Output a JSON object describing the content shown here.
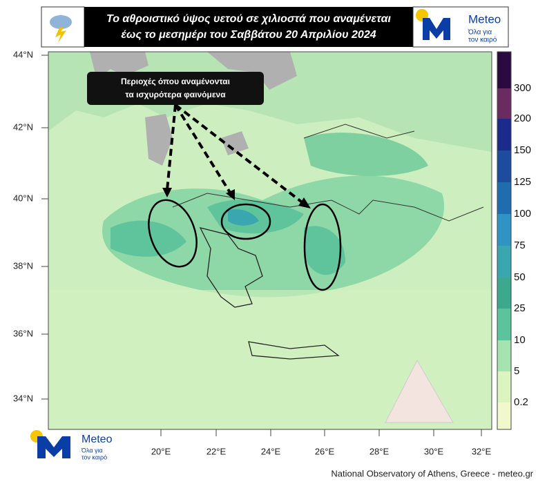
{
  "header": {
    "title_lines": [
      "Το αθροιστικό ύψος υετού σε χιλιοστά που αναμένεται",
      "έως το μεσημέρι του Σαββάτου 20 Απριλίου 2024"
    ]
  },
  "logo": {
    "name": "Meteo",
    "tagline": [
      "Όλα για",
      "τον καιρό"
    ]
  },
  "annotation": {
    "lines": [
      "Περιοχές όπου αναμένονται",
      "τα ισχυρότερα φαινόμενα"
    ]
  },
  "map": {
    "lat_labels": [
      "44°N",
      "42°N",
      "40°N",
      "38°N",
      "36°N",
      "34°N"
    ],
    "lon_labels": [
      "20°E",
      "22°E",
      "24°E",
      "26°E",
      "28°E",
      "30°E",
      "32°E"
    ]
  },
  "colorbar": {
    "labels": [
      "300",
      "200",
      "150",
      "125",
      "100",
      "75",
      "50",
      "25",
      "10",
      "5",
      "0.2"
    ],
    "colors": [
      "#2b0b3f",
      "#6a2c60",
      "#1c2a8c",
      "#1d4c9e",
      "#1f6cae",
      "#2f93c4",
      "#3aa6b0",
      "#3ca98f",
      "#5cc49c",
      "#a5e3b0",
      "#dcf4c0",
      "#f0f8cc",
      "#ffffff"
    ]
  },
  "footer": "National Observatory of Athens, Greece - meteo.gr"
}
